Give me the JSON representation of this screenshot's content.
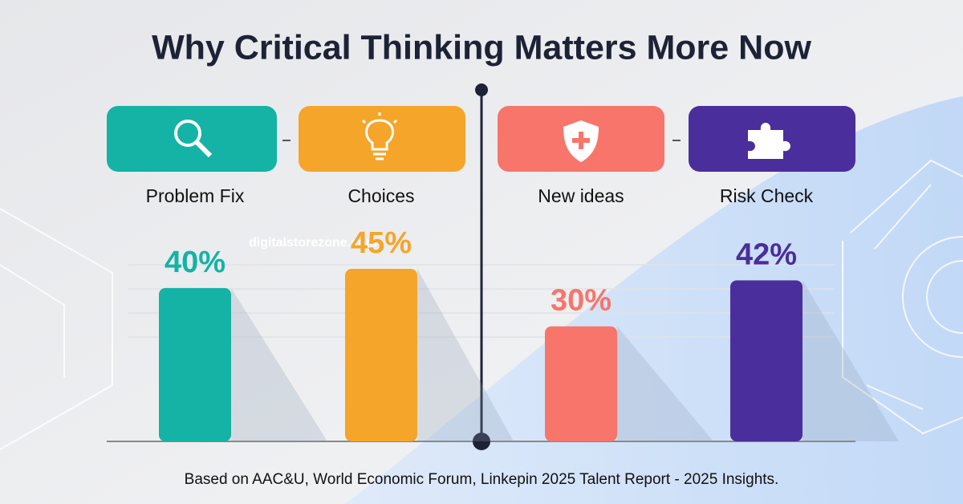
{
  "chart_data": {
    "type": "bar",
    "title": "Why Critical Thinking Matters More Now",
    "watermark": "digitalstorezone.com",
    "source": "Based on AAC&U, World Economic Forum, Linkepin 2025 Talent Report - 2025 Insights.",
    "categories": [
      "Problem Fix",
      "Choices",
      "New ideas",
      "Risk Check"
    ],
    "values": [
      40,
      45,
      30,
      42
    ],
    "value_labels": [
      "40%",
      "45%",
      "30%",
      "42%"
    ],
    "colors": [
      "#14b3a6",
      "#f5a52a",
      "#f8756b",
      "#4a2e9c"
    ]
  }
}
